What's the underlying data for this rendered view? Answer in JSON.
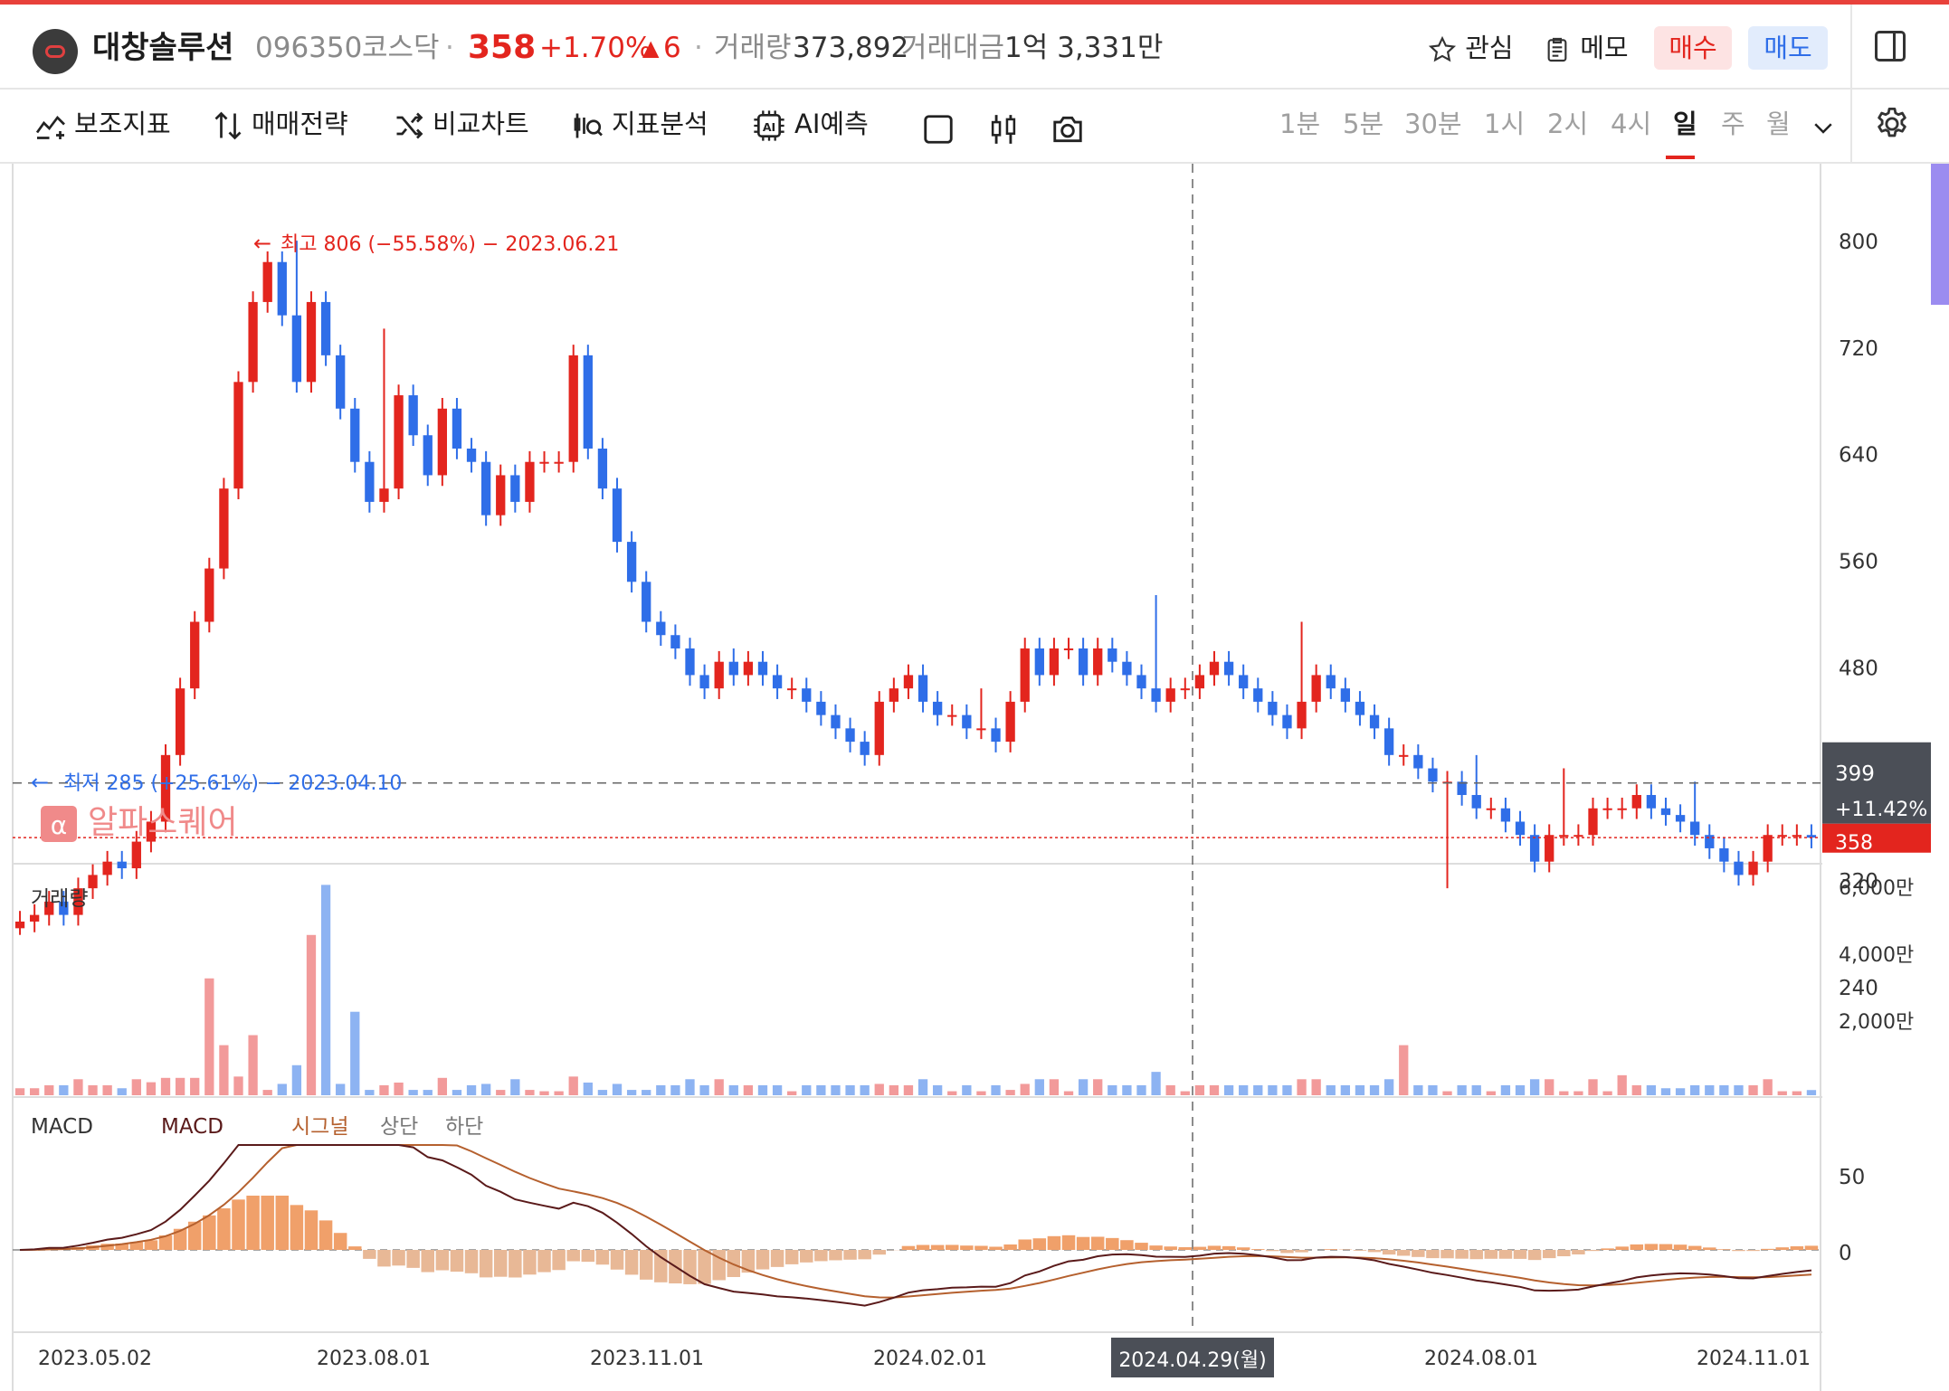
{
  "header": {
    "name": "대창솔루션",
    "code": "096350",
    "market": "코스닥",
    "price": "358",
    "change_pct": "+1.70%",
    "change_arrow": "▲",
    "change_abs": "6",
    "volume_label": "거래량",
    "volume_value": "373,892",
    "amount_label": "거래대금",
    "amount_value": "1억 3,331만",
    "fav_label": "관심",
    "memo_label": "메모",
    "buy_label": "매수",
    "sell_label": "매도",
    "sep": "·"
  },
  "toolbar": {
    "indicators": "보조지표",
    "strategy": "매매전략",
    "compare": "비교차트",
    "analysis": "지표분석",
    "ai": "AI예측",
    "timeframes": [
      "1분",
      "5분",
      "30분",
      "1시",
      "2시",
      "4시",
      "일",
      "주",
      "월"
    ],
    "active_timeframe": "일"
  },
  "watermark": "알파스퀘어",
  "colors": {
    "up": "#e3251e",
    "down": "#2f6ee8",
    "macd": "#5a1a1a",
    "signal": "#b5602e",
    "hist": "#f0a06a"
  },
  "chart_data": [
    {
      "type": "candlestick",
      "x_ticks": [
        "2023.05.02",
        "2023.08.01",
        "2023.11.01",
        "2024.02.01",
        "2024.08.01",
        "2024.11.01"
      ],
      "crosshair_date": "2024.04.29(월)",
      "crosshair_price": "399",
      "crosshair_pct": "+11.42%",
      "current_price": "358",
      "ylim": [
        220,
        850
      ],
      "y_ticks": [
        "800",
        "720",
        "640",
        "560",
        "480",
        "400",
        "320",
        "240"
      ],
      "high_label": "최고 806 (−55.58%) − 2023.06.21",
      "low_label": "최저 285 (+25.61%) − 2023.04.10",
      "closes": [
        295,
        300,
        310,
        300,
        320,
        330,
        340,
        335,
        355,
        370,
        420,
        470,
        520,
        560,
        620,
        700,
        760,
        790,
        750,
        700,
        760,
        720,
        680,
        640,
        610,
        620,
        690,
        660,
        630,
        680,
        650,
        640,
        600,
        630,
        610,
        640,
        640,
        640,
        720,
        650,
        620,
        580,
        550,
        520,
        510,
        500,
        480,
        470,
        490,
        480,
        490,
        480,
        470,
        470,
        460,
        450,
        440,
        430,
        420,
        460,
        470,
        480,
        460,
        450,
        450,
        440,
        440,
        430,
        460,
        500,
        480,
        500,
        500,
        480,
        500,
        490,
        480,
        470,
        460,
        470,
        470,
        480,
        490,
        480,
        470,
        460,
        450,
        440,
        460,
        480,
        470,
        460,
        450,
        440,
        420,
        420,
        410,
        400,
        400,
        390,
        380,
        380,
        370,
        360,
        340,
        360,
        360,
        360,
        380,
        380,
        380,
        390,
        380,
        375,
        370,
        360,
        350,
        340,
        330,
        340,
        360,
        360,
        360,
        358
      ],
      "highs_extra": {
        "19": 806,
        "25": 740,
        "49": 500,
        "66": 470,
        "78": 540,
        "88": 520,
        "100": 420,
        "106": 410,
        "115": 400
      },
      "lows_extra": {
        "0": 285,
        "98": 320
      },
      "volume": {
        "y_ticks": [
          "6,000만",
          "4,000만",
          "2,000만"
        ],
        "ylim": [
          0,
          6500
        ],
        "label": "거래량"
      },
      "macd": {
        "label_parts": [
          "MACD",
          "MACD",
          "시그널",
          "상단",
          "하단"
        ],
        "y_ticks": [
          "50",
          "0"
        ]
      }
    }
  ]
}
